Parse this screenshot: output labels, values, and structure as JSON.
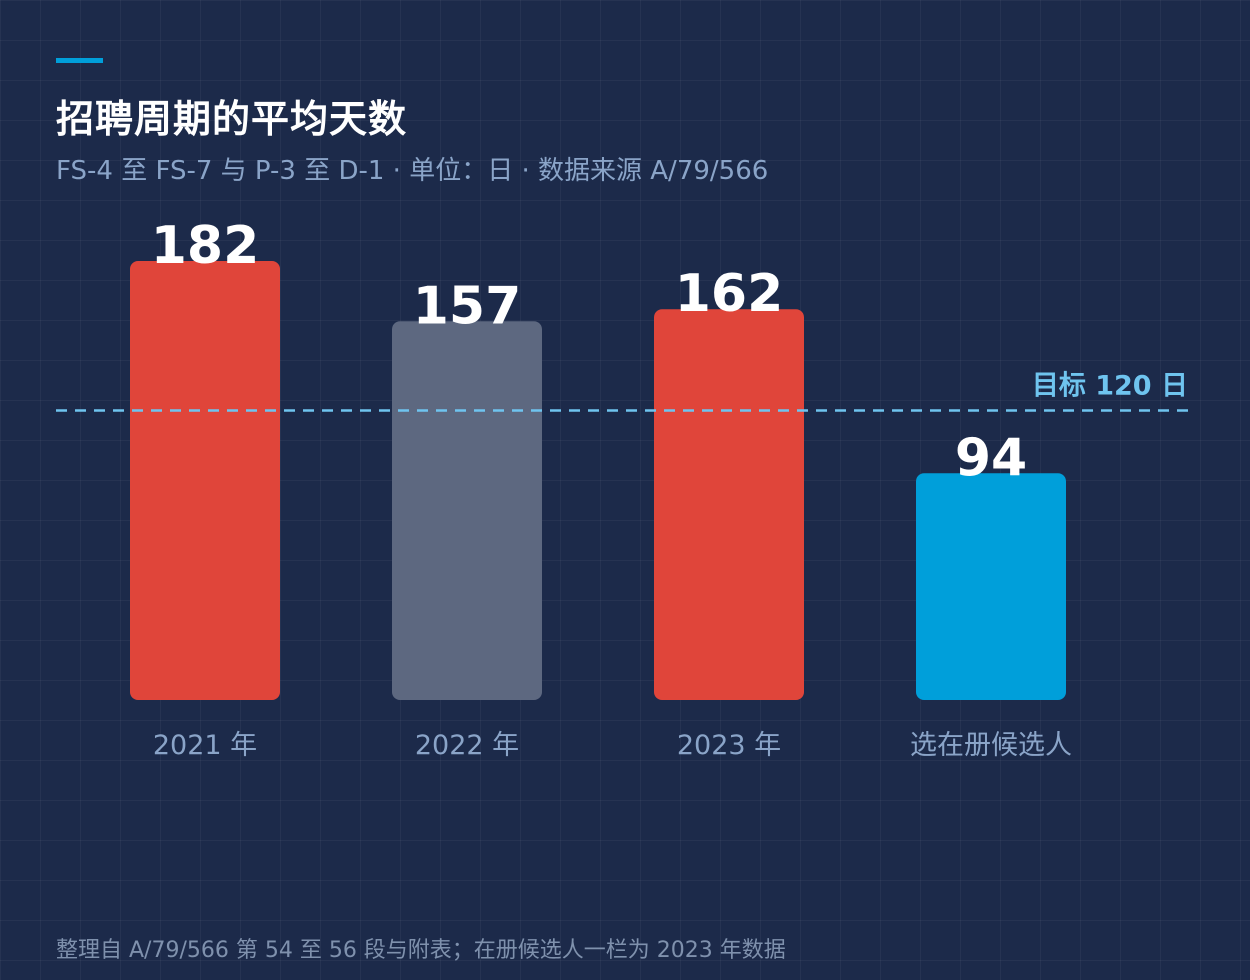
{
  "header": {
    "title": "招聘周期的平均天数",
    "subtitle": "FS-4 至 FS-7 与 P-3 至 D-1 · 单位：日 · 数据来源 A/79/566"
  },
  "footer": {
    "note": "整理自 A/79/566 第 54 至 56 段与附表；在册候选人一栏为 2023 年数据"
  },
  "colors": {
    "background": "#1c2a4a",
    "accent": "#009fda",
    "over_target": "#e0453a",
    "neutral": "#5d6880",
    "under_target": "#009fda",
    "target_line": "#6fc4ef",
    "value_label": "#ffffff",
    "category_label": "#8aa4c8"
  },
  "chart_data": {
    "type": "bar",
    "categories": [
      "2021 年",
      "2022 年",
      "2023 年",
      "选在册候选人"
    ],
    "values": [
      182,
      157,
      162,
      94
    ],
    "bar_colors": [
      "#e0453a",
      "#5d6880",
      "#e0453a",
      "#009fda"
    ],
    "ylim": [
      0,
      182
    ],
    "grid": true,
    "reference_line": {
      "value": 120,
      "label": "目标 120 日",
      "style": "dashed"
    }
  }
}
